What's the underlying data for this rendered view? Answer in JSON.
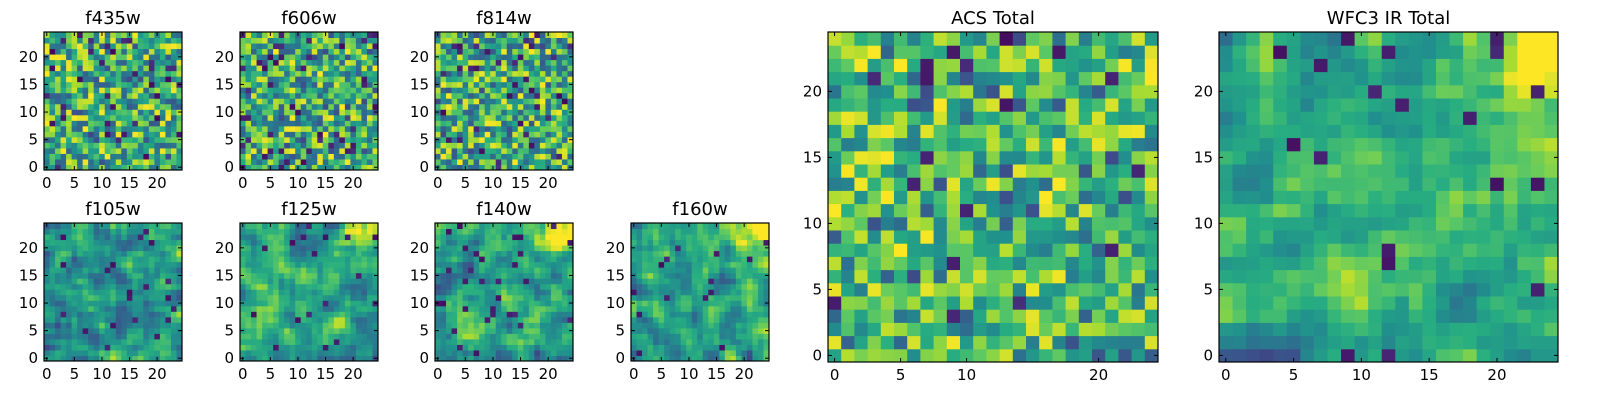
{
  "chart_data": [
    {
      "type": "heatmap",
      "title": "f435w",
      "grid_size": 25,
      "xlim": [
        0,
        24
      ],
      "ylim": [
        0,
        24
      ],
      "x_ticks": [
        0,
        5,
        10,
        15,
        20
      ],
      "y_ticks": [
        0,
        5,
        10,
        15,
        20
      ],
      "noise": "white",
      "seed": 11,
      "colormap": "viridis"
    },
    {
      "type": "heatmap",
      "title": "f606w",
      "grid_size": 25,
      "xlim": [
        0,
        24
      ],
      "ylim": [
        0,
        24
      ],
      "x_ticks": [
        0,
        5,
        10,
        15,
        20
      ],
      "y_ticks": [
        0,
        5,
        10,
        15,
        20
      ],
      "noise": "white",
      "seed": 23,
      "colormap": "viridis"
    },
    {
      "type": "heatmap",
      "title": "f814w",
      "grid_size": 25,
      "xlim": [
        0,
        24
      ],
      "ylim": [
        0,
        24
      ],
      "x_ticks": [
        0,
        5,
        10,
        15,
        20
      ],
      "y_ticks": [
        0,
        5,
        10,
        15,
        20
      ],
      "noise": "white",
      "seed": 37,
      "colormap": "viridis"
    },
    {
      "type": "heatmap",
      "title": "f105w",
      "grid_size": 25,
      "xlim": [
        0,
        24
      ],
      "ylim": [
        0,
        24
      ],
      "x_ticks": [
        0,
        5,
        10,
        15,
        20
      ],
      "y_ticks": [
        0,
        5,
        10,
        15,
        20
      ],
      "noise": "smooth",
      "seed": 41,
      "colormap": "viridis"
    },
    {
      "type": "heatmap",
      "title": "f125w",
      "grid_size": 25,
      "xlim": [
        0,
        24
      ],
      "ylim": [
        0,
        24
      ],
      "x_ticks": [
        0,
        5,
        10,
        15,
        20
      ],
      "y_ticks": [
        0,
        5,
        10,
        15,
        20
      ],
      "noise": "smooth",
      "seed": 53,
      "colormap": "viridis",
      "bright_corner": "top-right"
    },
    {
      "type": "heatmap",
      "title": "f140w",
      "grid_size": 25,
      "xlim": [
        0,
        24
      ],
      "ylim": [
        0,
        24
      ],
      "x_ticks": [
        0,
        5,
        10,
        15,
        20
      ],
      "y_ticks": [
        0,
        5,
        10,
        15,
        20
      ],
      "noise": "smooth",
      "seed": 67,
      "colormap": "viridis",
      "bright_corner": "top-right"
    },
    {
      "type": "heatmap",
      "title": "f160w",
      "grid_size": 25,
      "xlim": [
        0,
        24
      ],
      "ylim": [
        0,
        24
      ],
      "x_ticks": [
        0,
        5,
        10,
        15,
        20
      ],
      "y_ticks": [
        0,
        5,
        10,
        15,
        20
      ],
      "noise": "smooth",
      "seed": 79,
      "colormap": "viridis",
      "bright_corner": "top-right"
    },
    {
      "type": "heatmap",
      "title": "ACS Total",
      "grid_size": 25,
      "xlim": [
        0,
        24
      ],
      "ylim": [
        0,
        24
      ],
      "x_ticks": [
        0,
        5,
        10,
        20
      ],
      "y_ticks": [
        0,
        5,
        10,
        15,
        20
      ],
      "noise": "white-bright",
      "seed": 83,
      "colormap": "viridis"
    },
    {
      "type": "heatmap",
      "title": "WFC3 IR Total",
      "grid_size": 25,
      "xlim": [
        0,
        24
      ],
      "ylim": [
        0,
        24
      ],
      "x_ticks": [
        0,
        5,
        10,
        15,
        20
      ],
      "y_ticks": [
        0,
        5,
        10,
        15,
        20
      ],
      "noise": "smooth",
      "seed": 97,
      "colormap": "viridis",
      "bright_corner": "top-right"
    }
  ]
}
